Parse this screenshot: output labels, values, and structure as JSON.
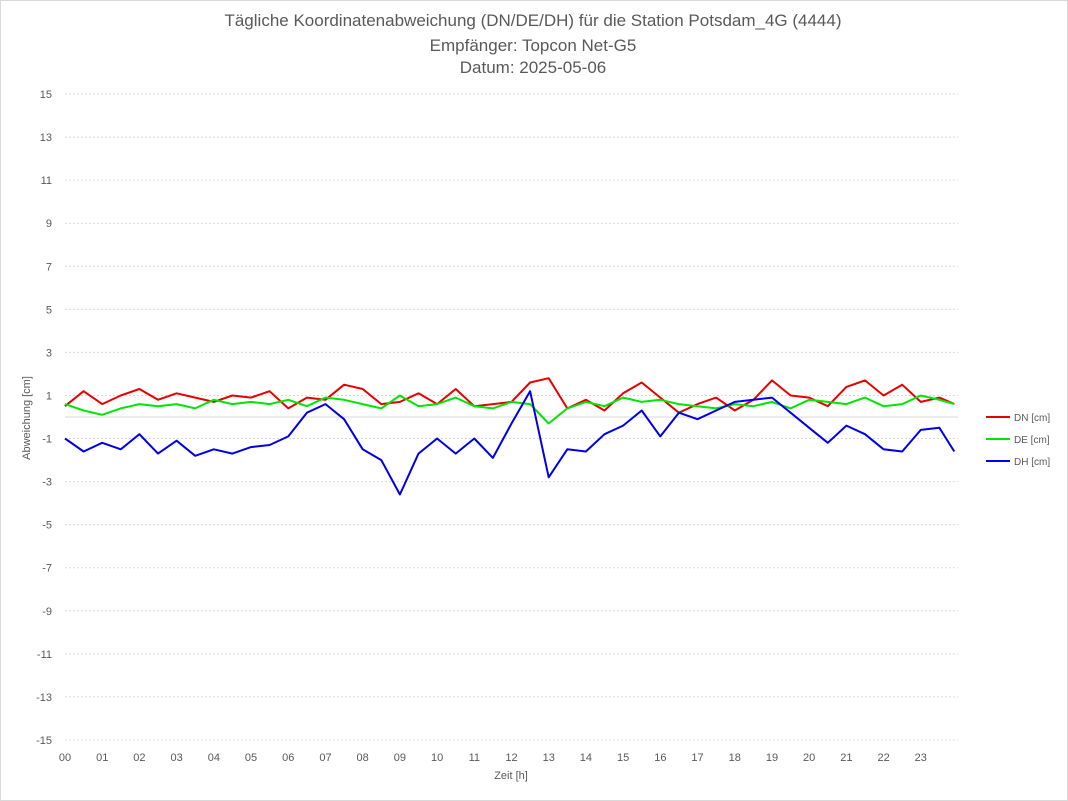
{
  "chart_data": {
    "type": "line",
    "title": "Tägliche Koordinatenabweichung (DN/DE/DH) für die Station Potsdam_4G (4444)",
    "subtitle": "Empfänger: Topcon Net-G5",
    "date_line": "Datum: 2025-05-06",
    "xlabel": "Zeit [h]",
    "ylabel": "Abweichung [cm]",
    "xlim": [
      0,
      24
    ],
    "ylim": [
      -15,
      15
    ],
    "x_ticks": [
      "00",
      "01",
      "02",
      "03",
      "04",
      "05",
      "06",
      "07",
      "08",
      "09",
      "10",
      "11",
      "12",
      "13",
      "14",
      "15",
      "16",
      "17",
      "18",
      "19",
      "20",
      "21",
      "22",
      "23"
    ],
    "y_ticks": [
      15,
      13,
      11,
      9,
      7,
      5,
      3,
      1,
      -1,
      -3,
      -5,
      -7,
      -9,
      -11,
      -13,
      -15
    ],
    "grid": "horizontal dotted",
    "legend_position": "right",
    "x": [
      0.0,
      0.5,
      1.0,
      1.5,
      2.0,
      2.5,
      3.0,
      3.5,
      4.0,
      4.5,
      5.0,
      5.5,
      6.0,
      6.5,
      7.0,
      7.5,
      8.0,
      8.5,
      9.0,
      9.5,
      10.0,
      10.5,
      11.0,
      11.5,
      12.0,
      12.5,
      13.0,
      13.5,
      14.0,
      14.5,
      15.0,
      15.5,
      16.0,
      16.5,
      17.0,
      17.5,
      18.0,
      18.5,
      19.0,
      19.5,
      20.0,
      20.5,
      21.0,
      21.5,
      22.0,
      22.5,
      23.0,
      23.5,
      23.9
    ],
    "series": [
      {
        "name": "DN [cm]",
        "color": "#e60000",
        "values": [
          0.5,
          1.2,
          0.6,
          1.0,
          1.3,
          0.8,
          1.1,
          0.9,
          0.7,
          1.0,
          0.9,
          1.2,
          0.4,
          0.9,
          0.8,
          1.5,
          1.3,
          0.6,
          0.7,
          1.1,
          0.6,
          1.3,
          0.5,
          0.6,
          0.7,
          1.6,
          1.8,
          0.4,
          0.8,
          0.3,
          1.1,
          1.6,
          0.9,
          0.2,
          0.6,
          0.9,
          0.3,
          0.8,
          1.7,
          1.0,
          0.9,
          0.5,
          1.4,
          1.7,
          1.0,
          1.5,
          0.7,
          0.9,
          0.6
        ]
      },
      {
        "name": "DE [cm]",
        "color": "#00e600",
        "values": [
          0.6,
          0.3,
          0.1,
          0.4,
          0.6,
          0.5,
          0.6,
          0.4,
          0.8,
          0.6,
          0.7,
          0.6,
          0.8,
          0.5,
          0.9,
          0.8,
          0.6,
          0.4,
          1.0,
          0.5,
          0.6,
          0.9,
          0.5,
          0.4,
          0.7,
          0.6,
          -0.3,
          0.4,
          0.7,
          0.5,
          0.9,
          0.7,
          0.8,
          0.6,
          0.5,
          0.4,
          0.6,
          0.5,
          0.7,
          0.4,
          0.8,
          0.7,
          0.6,
          0.9,
          0.5,
          0.6,
          1.0,
          0.8,
          0.6
        ]
      },
      {
        "name": "DH [cm]",
        "color": "#0000e6",
        "values": [
          -1.0,
          -1.6,
          -1.2,
          -1.5,
          -0.8,
          -1.7,
          -1.1,
          -1.8,
          -1.5,
          -1.7,
          -1.4,
          -1.3,
          -0.9,
          0.2,
          0.6,
          -0.1,
          -1.5,
          -2.0,
          -3.6,
          -1.7,
          -1.0,
          -1.7,
          -1.0,
          -1.9,
          -0.3,
          1.2,
          -2.8,
          -1.5,
          -1.6,
          -0.8,
          -0.4,
          0.3,
          -0.9,
          0.2,
          -0.1,
          0.3,
          0.7,
          0.8,
          0.9,
          0.2,
          -0.5,
          -1.2,
          -0.4,
          -0.8,
          -1.5,
          -1.6,
          -0.6,
          -0.5,
          -1.6
        ]
      }
    ]
  }
}
